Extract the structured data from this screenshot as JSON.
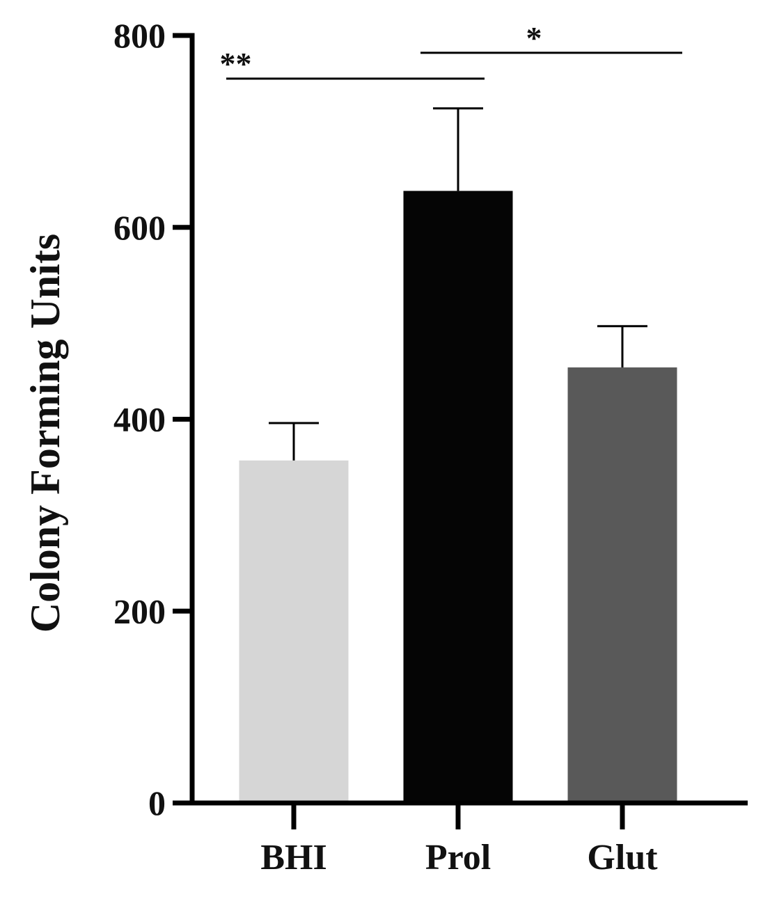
{
  "chart_data": {
    "type": "bar",
    "title": "",
    "xlabel": "",
    "ylabel": "Colony Forming Units",
    "ylim": [
      0,
      800
    ],
    "yticks": [
      0,
      200,
      400,
      600,
      800
    ],
    "grid": false,
    "categories": [
      "BHI",
      "Prol",
      "Glut"
    ],
    "values": [
      357,
      638,
      454
    ],
    "errors": [
      39,
      86,
      43
    ],
    "colors": [
      "#d6d6d6",
      "#050505",
      "#595959"
    ],
    "axis_color": "#000000",
    "significance": [
      {
        "from": 0,
        "to": 1,
        "label": "**",
        "y": 755
      },
      {
        "from": 1,
        "to": 2,
        "label": "*",
        "y": 782
      }
    ]
  }
}
